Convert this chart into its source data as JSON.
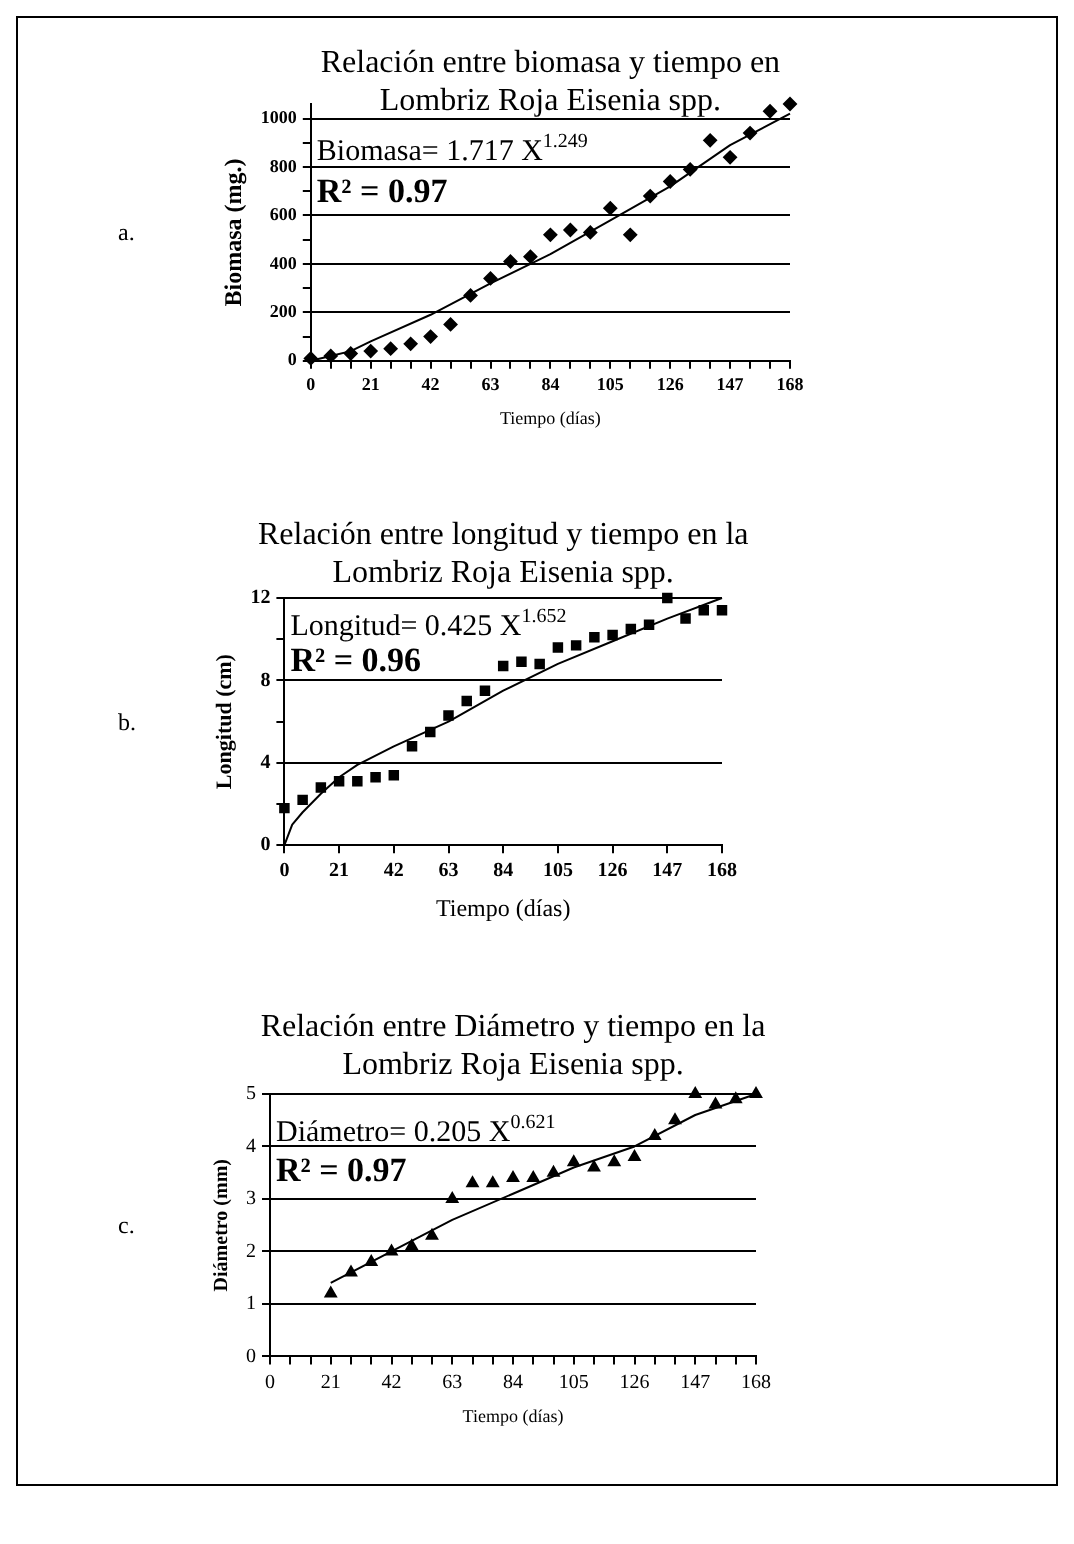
{
  "chart_data": [
    {
      "type": "scatter",
      "title": "Relación entre biomasa y tiempo en Lombriz Roja Eisenia spp.",
      "xlabel": "Tiempo (días)",
      "ylabel": "Biomasa (mg.)",
      "annotations": [
        "a.",
        "Biomasa= 1.717 X$^{1.249}$",
        "R² = 0.97"
      ],
      "xlim": [
        0,
        168
      ],
      "xticks": [
        0,
        {
          "value": 7,
          "label": null
        },
        {
          "value": 14,
          "label": null
        },
        21,
        {
          "value": 28,
          "label": null
        },
        {
          "value": 35,
          "label": null
        },
        42,
        {
          "value": 49,
          "label": null
        },
        {
          "value": 56,
          "label": null
        },
        63,
        {
          "value": 70,
          "label": null
        },
        {
          "value": 77,
          "label": null
        },
        84,
        {
          "value": 91,
          "label": null
        },
        {
          "value": 98,
          "label": null
        },
        105,
        {
          "value": 112,
          "label": null
        },
        {
          "value": 119,
          "label": null
        },
        126,
        {
          "value": 133,
          "label": null
        },
        {
          "value": 140,
          "label": null
        },
        147,
        {
          "value": 154,
          "label": null
        },
        {
          "value": 161,
          "label": null
        },
        168
      ],
      "ylim": [
        0,
        1060
      ],
      "yticks": [
        0,
        {
          "value": 100,
          "label": null
        },
        200,
        {
          "value": 300,
          "label": null
        },
        400,
        {
          "value": 500,
          "label": null
        },
        600,
        {
          "value": 700,
          "label": null
        },
        800,
        {
          "value": 900,
          "label": null
        },
        1000
      ],
      "grid": "y",
      "series": [
        {
          "type": "scatter",
          "marker": "diamond",
          "color": "#000000",
          "x": [
            0,
            7,
            14,
            21,
            28,
            35,
            42,
            49,
            56,
            63,
            70,
            77,
            84,
            91,
            98,
            105,
            112,
            119,
            126,
            133,
            140,
            147,
            154,
            161,
            168
          ],
          "values": [
            10,
            20,
            30,
            40,
            50,
            70,
            100,
            150,
            270,
            340,
            410,
            430,
            520,
            540,
            530,
            630,
            520,
            680,
            740,
            790,
            910,
            840,
            940,
            1030,
            1060
          ]
        },
        {
          "type": "line",
          "marker": "none",
          "line_style": "solid",
          "color": "#000000",
          "x": [
            0,
            7,
            14,
            21,
            42,
            63,
            84,
            105,
            126,
            147,
            168
          ],
          "values": [
            0,
            20,
            40,
            80,
            190,
            320,
            440,
            580,
            720,
            890,
            1020
          ]
        }
      ]
    },
    {
      "type": "scatter",
      "title": "Relación entre longitud y tiempo en la Lombriz Roja Eisenia spp.",
      "xlabel": "Tiempo (días)",
      "ylabel": "Longitud (cm)",
      "annotations": [
        "b.",
        "Longitud= 0.425 X$^{1.652}$",
        "R² = 0.96"
      ],
      "xlim": [
        0,
        168
      ],
      "xticks": [
        0,
        21,
        42,
        63,
        84,
        105,
        126,
        147,
        168
      ],
      "ylim": [
        0,
        12
      ],
      "yticks": [
        0,
        {
          "value": 2,
          "label": null
        },
        4,
        {
          "value": 6,
          "label": null
        },
        8,
        {
          "value": 10,
          "label": null
        },
        12
      ],
      "grid": "y",
      "series": [
        {
          "type": "scatter",
          "marker": "square",
          "color": "#000000",
          "x": [
            0,
            7,
            14,
            21,
            28,
            35,
            42,
            49,
            56,
            63,
            70,
            77,
            84,
            91,
            98,
            105,
            112,
            119,
            126,
            133,
            140,
            147,
            154,
            161,
            168
          ],
          "values": [
            1.8,
            2.2,
            2.8,
            3.1,
            3.1,
            3.3,
            3.4,
            4.8,
            5.5,
            6.3,
            7.0,
            7.5,
            8.7,
            8.9,
            8.8,
            9.6,
            9.7,
            10.1,
            10.2,
            10.5,
            10.7,
            12.0,
            11.0,
            11.4,
            11.4
          ]
        },
        {
          "type": "line",
          "marker": "none",
          "line_style": "solid",
          "color": "#000000",
          "x": [
            0,
            3,
            7,
            14,
            21,
            28,
            42,
            63,
            84,
            105,
            126,
            147,
            168
          ],
          "values": [
            0,
            1.0,
            1.6,
            2.5,
            3.3,
            3.9,
            4.8,
            6.0,
            7.5,
            8.8,
            9.9,
            11.0,
            12.0
          ]
        }
      ]
    },
    {
      "type": "scatter",
      "title": "Relación entre Diámetro y tiempo en la Lombriz Roja Eisenia spp.",
      "xlabel": "Tiempo (días)",
      "ylabel": "Diámetro (mm)",
      "annotations": [
        "c.",
        "Diámetro= 0.205 X$^{0.621}$",
        "R² = 0.97"
      ],
      "xlim": [
        0,
        168
      ],
      "xticks": [
        0,
        {
          "value": 7,
          "label": null
        },
        {
          "value": 14,
          "label": null
        },
        21,
        {
          "value": 28,
          "label": null
        },
        {
          "value": 35,
          "label": null
        },
        42,
        {
          "value": 49,
          "label": null
        },
        {
          "value": 56,
          "label": null
        },
        63,
        {
          "value": 70,
          "label": null
        },
        {
          "value": 77,
          "label": null
        },
        84,
        {
          "value": 91,
          "label": null
        },
        {
          "value": 98,
          "label": null
        },
        105,
        {
          "value": 112,
          "label": null
        },
        {
          "value": 119,
          "label": null
        },
        126,
        {
          "value": 133,
          "label": null
        },
        {
          "value": 140,
          "label": null
        },
        147,
        {
          "value": 154,
          "label": null
        },
        {
          "value": 161,
          "label": null
        },
        168
      ],
      "ylim": [
        0,
        5
      ],
      "yticks": [
        0,
        1,
        2,
        3,
        4,
        5
      ],
      "grid": "y",
      "series": [
        {
          "type": "scatter",
          "marker": "triangle",
          "color": "#000000",
          "x": [
            21,
            28,
            35,
            42,
            49,
            56,
            63,
            70,
            77,
            84,
            91,
            98,
            105,
            112,
            119,
            126,
            133,
            140,
            147,
            154,
            161,
            168
          ],
          "values": [
            1.2,
            1.6,
            1.8,
            2.0,
            2.1,
            2.3,
            3.0,
            3.3,
            3.3,
            3.4,
            3.4,
            3.5,
            3.7,
            3.6,
            3.7,
            3.8,
            4.2,
            4.5,
            5.0,
            4.8,
            4.9,
            5.0
          ]
        },
        {
          "type": "line",
          "marker": "none",
          "line_style": "solid",
          "color": "#000000",
          "x": [
            21,
            28,
            42,
            63,
            84,
            105,
            126,
            147,
            168
          ],
          "values": [
            1.4,
            1.6,
            2.0,
            2.6,
            3.1,
            3.6,
            4.0,
            4.6,
            5.0
          ]
        }
      ]
    }
  ]
}
